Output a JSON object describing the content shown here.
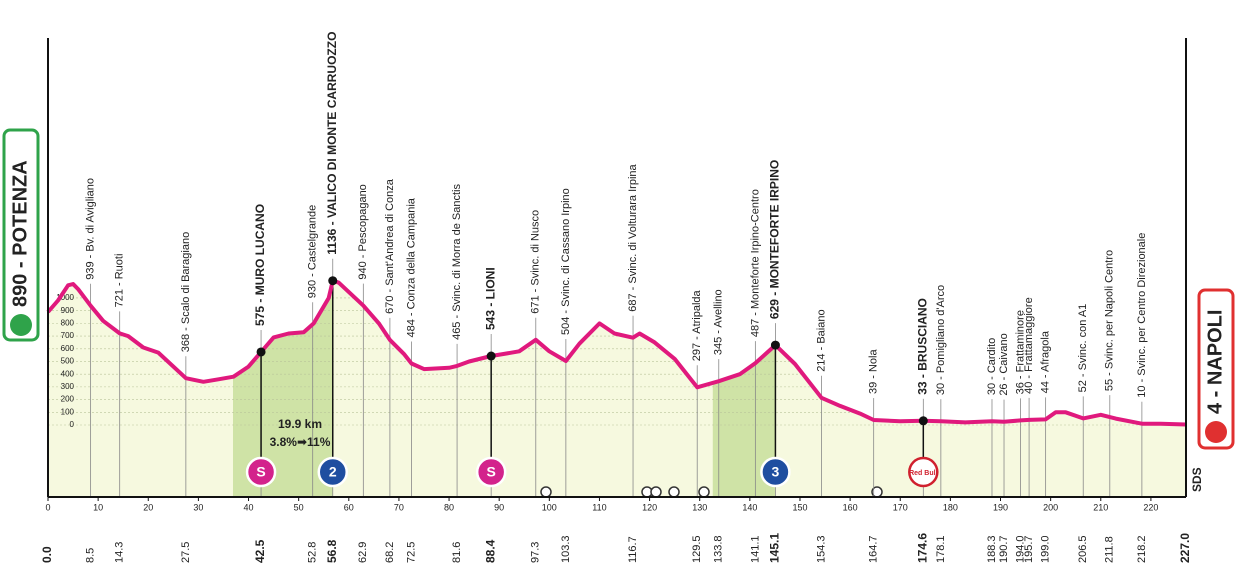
{
  "chart_data": {
    "type": "area",
    "color": "#e0197d",
    "fill": "#f6f9df",
    "climb_color": "#cfe3a6",
    "x": [
      0,
      2,
      4,
      5,
      6,
      8.5,
      11,
      14.3,
      16,
      19,
      22,
      27.5,
      31,
      34,
      37,
      40,
      42.5,
      45,
      48,
      51,
      53,
      56,
      56.8,
      58,
      62.9,
      66,
      68.2,
      71,
      72.5,
      75,
      80,
      81.6,
      84,
      88.4,
      91,
      94,
      97.3,
      100,
      103.3,
      106,
      110,
      113,
      116.7,
      118,
      121,
      125,
      129.5,
      133.8,
      138,
      141.1,
      145.1,
      149,
      154.3,
      158,
      162,
      164.7,
      170,
      174.6,
      178.1,
      183,
      188.3,
      190.7,
      194,
      195.7,
      199,
      201,
      203,
      206.5,
      210,
      213,
      218.2,
      222,
      227
    ],
    "values": [
      890,
      980,
      1100,
      1110,
      1070,
      939,
      820,
      721,
      700,
      610,
      570,
      368,
      340,
      360,
      380,
      460,
      575,
      690,
      720,
      730,
      800,
      1000,
      1136,
      1120,
      940,
      800,
      670,
      560,
      484,
      440,
      450,
      465,
      500,
      543,
      560,
      580,
      671,
      580,
      504,
      640,
      800,
      720,
      687,
      720,
      650,
      520,
      297,
      345,
      400,
      487,
      629,
      480,
      214,
      150,
      90,
      39,
      30,
      33,
      30,
      20,
      30,
      26,
      36,
      40,
      44,
      100,
      100,
      52,
      80,
      50,
      10,
      10,
      4
    ],
    "xlim": [
      0,
      227
    ],
    "ylim": [
      -567,
      3047
    ],
    "xticks": [
      0,
      10,
      20,
      30,
      40,
      50,
      60,
      70,
      80,
      90,
      100,
      110,
      120,
      130,
      140,
      150,
      160,
      170,
      180,
      190,
      200,
      210,
      220
    ],
    "yticks": [
      0,
      100,
      200,
      300,
      400,
      500,
      600,
      700,
      800,
      900,
      1000
    ],
    "grid": true,
    "climbs": [
      {
        "start": 36.9,
        "end": 56.8
      },
      {
        "start": 132.6,
        "end": 145.1
      }
    ],
    "annotations": [
      "19.9 km",
      "3.8%➡11%"
    ],
    "logo": "SDS",
    "waypoints": [
      {
        "km": {
          "value": 0,
          "label": "0.0"
        },
        "label": "890 - POTENZA",
        "bold": true,
        "terminal": "start"
      },
      {
        "km": 8.5,
        "label": "939 - Bv. di Avigliano"
      },
      {
        "km": 14.3,
        "label": "721 - Ruoti"
      },
      {
        "km": 27.5,
        "label": "368 - Scalo di Baragiano"
      },
      {
        "km": 42.5,
        "label": "575 - MURO LUCANO",
        "bold": true,
        "marker": {
          "label": "S",
          "color": "#d3238c"
        }
      },
      {
        "km": 52.8,
        "label": "930 - Castelgrande"
      },
      {
        "km": 56.8,
        "label": "1136 - VALICO DI MONTE CARRUOZZO",
        "bold": true,
        "marker": {
          "label": "2",
          "color": "#1f4ea0"
        }
      },
      {
        "km": 62.9,
        "label": "940 - Pescopagano"
      },
      {
        "km": 68.2,
        "label": "670 - Sant'Andrea di Conza"
      },
      {
        "km": 72.5,
        "label": "484 - Conza della Campania"
      },
      {
        "km": 81.6,
        "label": "465 - Svinc. di Morra de Sanctis"
      },
      {
        "km": 88.4,
        "label": "543 - LIONI",
        "bold": true,
        "marker": {
          "label": "S",
          "color": "#d3238c"
        }
      },
      {
        "km": 97.3,
        "label": "671 - Svinc. di Nusco"
      },
      {
        "km": 103.3,
        "label": "504 - Svinc. di Cassano Irpino"
      },
      {
        "km": 116.7,
        "label": "687 - Svinc. di Volturara Irpina"
      },
      {
        "km": 129.5,
        "label": "297 - Atripalda"
      },
      {
        "km": 133.8,
        "label": "345 - Avellino"
      },
      {
        "km": 141.1,
        "label": "487 - Monteforte Irpino-Centro"
      },
      {
        "km": 145.1,
        "label": "629 - MONTEFORTE IRPINO",
        "bold": true,
        "marker": {
          "label": "3",
          "color": "#1f4ea0"
        }
      },
      {
        "km": 154.3,
        "label": "214 - Baiano"
      },
      {
        "km": 164.7,
        "label": "39 - Nola"
      },
      {
        "km": 174.6,
        "label": "33 - BRUSCIANO",
        "bold": true,
        "marker": {
          "label": "Red Bull",
          "color": "#d0202e"
        }
      },
      {
        "km": 178.1,
        "label": "30 - Pomigliano d'Arco"
      },
      {
        "km": 188.3,
        "label": "30 - Cardito"
      },
      {
        "km": 190.7,
        "label": "26 - Caivano"
      },
      {
        "km": {
          "value": 194,
          "label": "194.0"
        },
        "label": "36 - Frattaminore"
      },
      {
        "km": 195.7,
        "label": "40 - Frattamaggiore"
      },
      {
        "km": {
          "value": 199,
          "label": "199.0"
        },
        "label": "44 - Afragola"
      },
      {
        "km": 206.5,
        "label": "52 - Svinc. con A1"
      },
      {
        "km": 211.8,
        "label": "55 - Svinc. per Napoli Centro"
      },
      {
        "km": 218.2,
        "label": "10 - Svinc. per Centro Direzionale"
      },
      {
        "km": {
          "value": 227,
          "label": "227.0"
        },
        "label": "4 - NAPOLI",
        "bold": true,
        "terminal": "end"
      }
    ]
  }
}
